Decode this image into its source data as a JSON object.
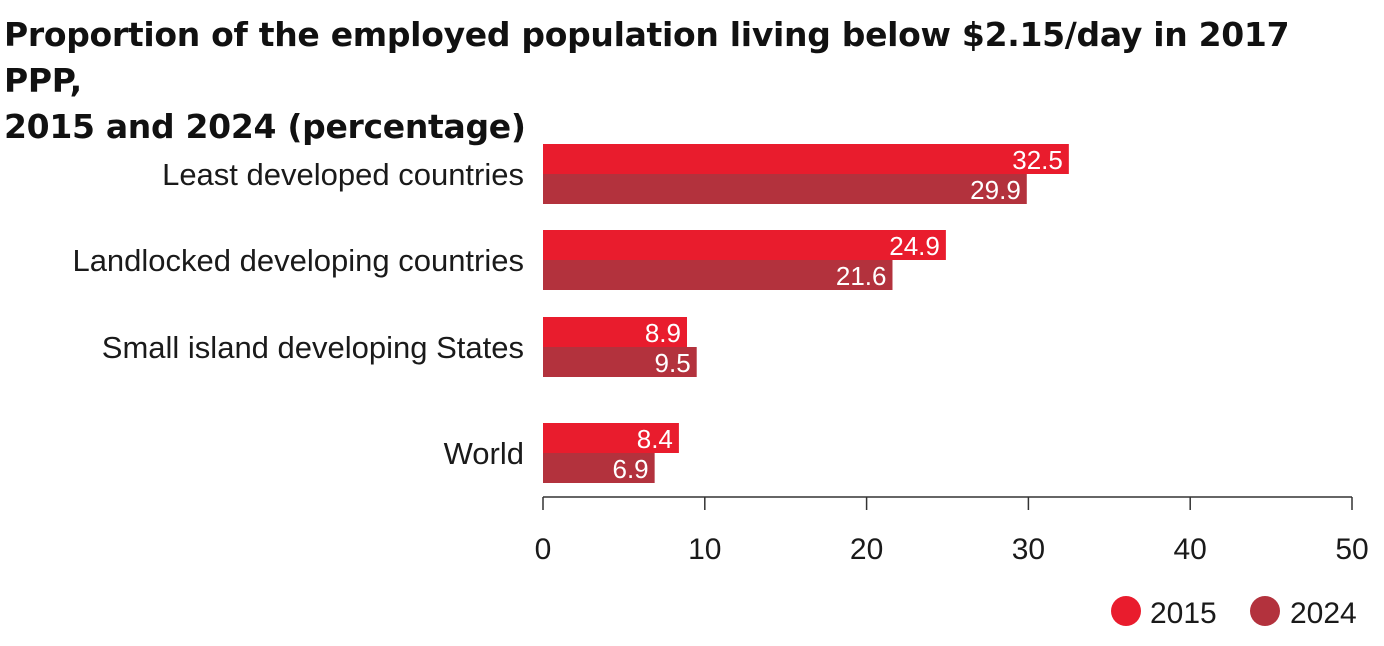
{
  "chart_data": {
    "type": "bar",
    "orientation": "horizontal",
    "title_line1": "Proportion of the employed population living below $2.15/day in 2017 PPP,",
    "title_line2": "2015 and 2024 (percentage)",
    "categories": [
      "Least developed countries",
      "Landlocked developing countries",
      "Small island developing States",
      "World"
    ],
    "series": [
      {
        "name": "2015",
        "color": "#e91c2d",
        "values": [
          32.5,
          24.9,
          8.9,
          8.4
        ]
      },
      {
        "name": "2024",
        "color": "#b3323d",
        "values": [
          29.9,
          21.6,
          9.5,
          6.9
        ]
      }
    ],
    "xlim": [
      0,
      50
    ],
    "xticks": [
      "0",
      "10",
      "20",
      "30",
      "40",
      "50"
    ],
    "grid": false,
    "legend_position": "bottom-right"
  }
}
